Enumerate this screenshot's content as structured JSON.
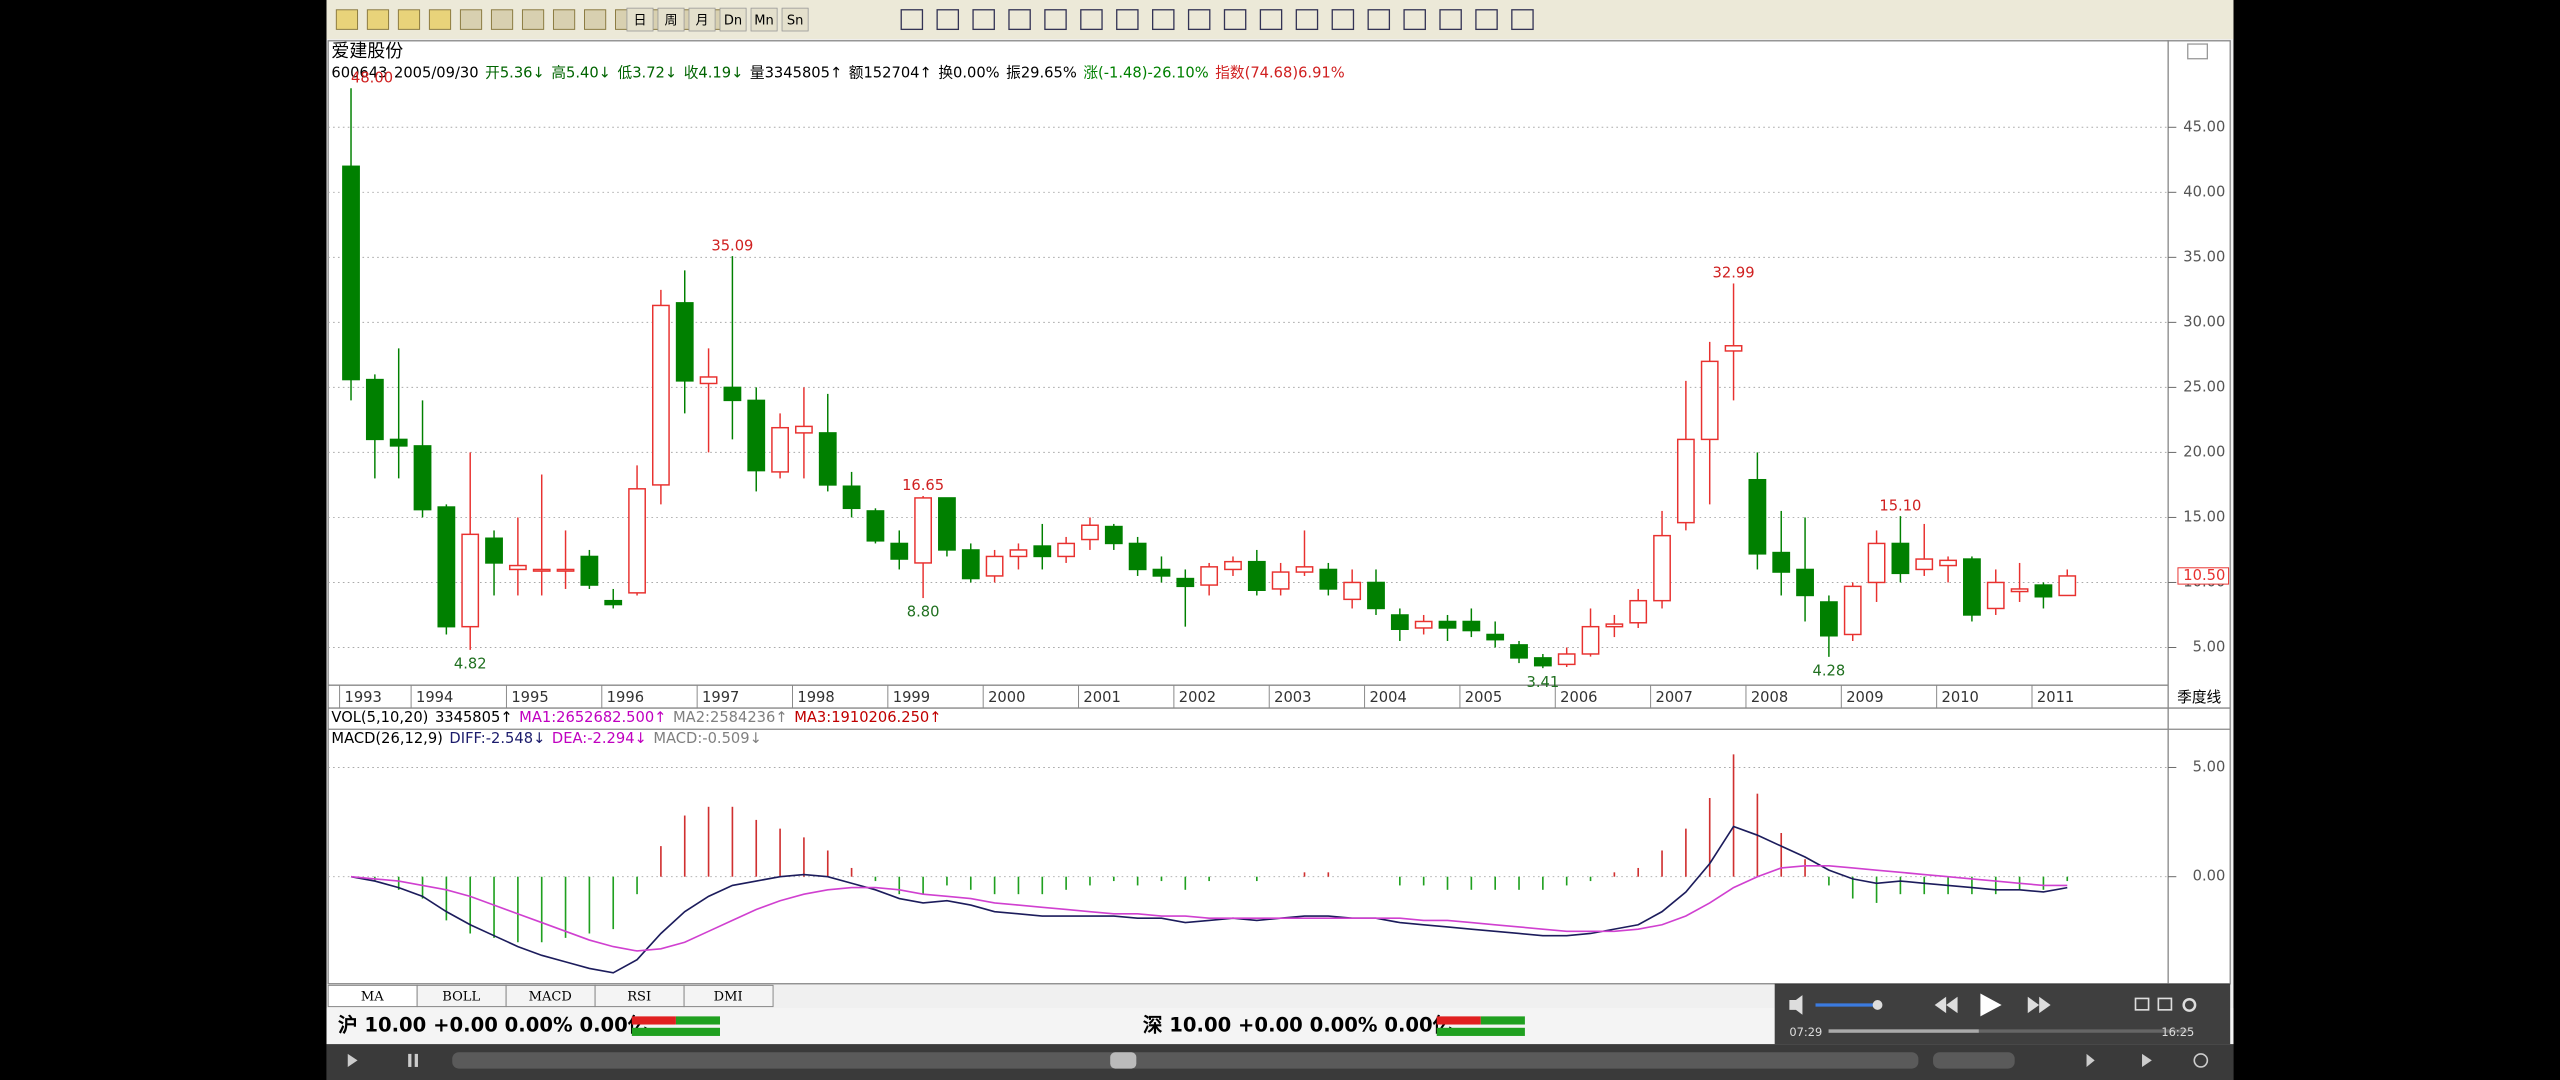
{
  "header": {
    "title": "爱建股份",
    "info": [
      {
        "text": "600643",
        "color": "#000000"
      },
      {
        "text": "2005/09/30",
        "color": "#000000"
      },
      {
        "text": "开5.36↓",
        "color": "#006400"
      },
      {
        "text": "高5.40↓",
        "color": "#006400"
      },
      {
        "text": "低3.72↓",
        "color": "#006400"
      },
      {
        "text": "收4.19↓",
        "color": "#006400"
      },
      {
        "text": "量3345805↑",
        "color": "#000000"
      },
      {
        "text": "额152704↑",
        "color": "#000000"
      },
      {
        "text": "换0.00%",
        "color": "#000000"
      },
      {
        "text": "振29.65%",
        "color": "#000000"
      },
      {
        "text": "涨(-1.48)-26.10%",
        "color": "#008000"
      },
      {
        "text": "指数(74.68)6.91%",
        "color": "#d02020"
      }
    ],
    "vol_readout": [
      {
        "text": "VOL(5,10,20)",
        "color": "#000000"
      },
      {
        "text": "3345805↑",
        "color": "#000000"
      },
      {
        "text": "MA1:2652682.500↑",
        "color": "#c000c0"
      },
      {
        "text": "MA2:2584236↑",
        "color": "#808080"
      },
      {
        "text": "MA3:1910206.250↑",
        "color": "#c00000"
      }
    ]
  },
  "toolbar": {
    "labels": [
      "日",
      "周",
      "月",
      "Dn",
      "Mn",
      "Sn"
    ]
  },
  "chart_data": [
    {
      "type": "candlestick",
      "period_label": "季度线",
      "categories": [
        "1993",
        null,
        null,
        "1994",
        null,
        null,
        null,
        "1995",
        null,
        null,
        null,
        "1996",
        null,
        null,
        null,
        "1997",
        null,
        null,
        null,
        "1998",
        null,
        null,
        null,
        "1999",
        null,
        null,
        null,
        "2000",
        null,
        null,
        null,
        "2001",
        null,
        null,
        null,
        "2002",
        null,
        null,
        null,
        "2003",
        null,
        null,
        null,
        "2004",
        null,
        null,
        null,
        "2005",
        null,
        null,
        null,
        "2006",
        null,
        null,
        null,
        "2007",
        null,
        null,
        null,
        "2008",
        null,
        null,
        null,
        "2009",
        null,
        null,
        null,
        "2010",
        null,
        null,
        null,
        "2011",
        null
      ],
      "open": [
        42,
        25.6,
        21,
        20.5,
        15.8,
        6.6,
        13.4,
        11,
        11,
        11,
        12,
        8.6,
        9.2,
        17.5,
        31.5,
        25.3,
        25,
        24,
        18.5,
        21.5,
        21.5,
        17.4,
        15.5,
        13,
        11.5,
        16.5,
        12.5,
        10.5,
        12,
        12.8,
        12,
        13.3,
        14.3,
        13,
        11,
        10.3,
        9.8,
        11,
        11.6,
        9.5,
        10.8,
        11,
        8.7,
        10,
        7.5,
        6.5,
        7,
        7,
        6,
        5.2,
        4.2,
        3.7,
        4.5,
        6.6,
        6.9,
        8.6,
        14.6,
        21,
        27.8,
        17.9,
        12.3,
        11,
        8.5,
        6,
        10,
        13,
        11,
        11.3,
        11.8,
        8,
        9.3,
        9.8,
        9
      ],
      "high": [
        48,
        26,
        28,
        24,
        16,
        20,
        14,
        15,
        18.3,
        14,
        12.5,
        9.5,
        19,
        32.5,
        34,
        28,
        35.09,
        25,
        23,
        25,
        24.5,
        18.5,
        15.7,
        14,
        16.65,
        16.5,
        13,
        12.5,
        13,
        14.5,
        13.5,
        15,
        14.5,
        13.5,
        12,
        11,
        11.5,
        12,
        12.5,
        11.5,
        14,
        11.5,
        11,
        11,
        8,
        7.5,
        7.5,
        8,
        7,
        5.5,
        4.5,
        5,
        8,
        7.5,
        9.5,
        15.5,
        25.5,
        28.5,
        32.99,
        20,
        15.5,
        15,
        9,
        10,
        14,
        15.1,
        14.5,
        12,
        12,
        11,
        11.5,
        10,
        11
      ],
      "low": [
        24,
        18,
        18,
        15,
        6,
        4.82,
        9,
        9,
        9,
        9.5,
        9.5,
        8,
        9,
        16,
        23,
        20,
        21,
        17,
        18,
        18,
        17,
        15,
        13,
        11,
        8.8,
        12,
        10,
        10,
        11,
        11,
        11.5,
        12.5,
        12.5,
        10.5,
        10,
        6.6,
        9,
        10.5,
        9,
        9,
        10.5,
        9,
        8,
        7.5,
        5.5,
        6,
        5.5,
        5.8,
        5,
        3.8,
        3.41,
        3.5,
        4.3,
        5.8,
        6.5,
        8,
        14,
        16,
        24,
        11,
        9,
        7,
        4.28,
        5.5,
        8.5,
        10,
        10.5,
        10,
        7,
        7.5,
        8.5,
        8,
        9
      ],
      "close": [
        25.6,
        21,
        20.5,
        15.6,
        6.6,
        13.7,
        11.5,
        11.3,
        11,
        11,
        9.8,
        8.3,
        17.2,
        31.3,
        25.5,
        25.8,
        24,
        18.6,
        21.9,
        22,
        17.5,
        15.7,
        13.2,
        11.8,
        16.5,
        12.5,
        10.3,
        12,
        12.5,
        12,
        13,
        14.4,
        13,
        11,
        10.5,
        9.7,
        11.2,
        11.6,
        9.4,
        10.8,
        11.2,
        9.5,
        10,
        8,
        6.4,
        7,
        6.5,
        6.3,
        5.6,
        4.2,
        3.6,
        4.5,
        6.6,
        6.8,
        8.6,
        13.6,
        21,
        27,
        28.2,
        12.2,
        10.8,
        9,
        5.9,
        9.7,
        13,
        10.7,
        11.8,
        11.7,
        7.5,
        10,
        9.5,
        8.9,
        10.5
      ],
      "high_labels": [
        "48.00",
        null,
        null,
        null,
        null,
        null,
        null,
        null,
        null,
        null,
        null,
        null,
        null,
        null,
        null,
        null,
        "35.09",
        null,
        null,
        null,
        null,
        null,
        null,
        null,
        "16.65",
        null,
        null,
        null,
        null,
        null,
        null,
        null,
        null,
        null,
        null,
        null,
        null,
        null,
        null,
        null,
        null,
        null,
        null,
        null,
        null,
        null,
        null,
        null,
        null,
        null,
        null,
        null,
        null,
        null,
        null,
        null,
        null,
        null,
        "32.99",
        null,
        null,
        null,
        null,
        null,
        null,
        "15.10",
        null,
        null,
        null,
        null,
        null,
        null,
        null
      ],
      "low_labels": [
        null,
        null,
        null,
        null,
        null,
        "4.82",
        null,
        null,
        null,
        null,
        null,
        null,
        null,
        null,
        null,
        null,
        null,
        null,
        null,
        null,
        null,
        null,
        null,
        null,
        "8.80",
        null,
        null,
        null,
        null,
        null,
        null,
        null,
        null,
        null,
        null,
        null,
        null,
        null,
        null,
        null,
        null,
        null,
        null,
        null,
        null,
        null,
        null,
        null,
        null,
        null,
        "3.41",
        null,
        null,
        null,
        null,
        null,
        null,
        null,
        null,
        null,
        null,
        null,
        "4.28",
        null,
        null,
        null,
        null,
        null,
        null,
        null,
        null,
        null,
        null
      ],
      "last_label": "10.50",
      "up_color": "#e8312f",
      "down_color": "#008000",
      "label_up_color": "#d02020",
      "label_down_color": "#207020",
      "ylim": [
        2.1,
        51.4
      ],
      "yticks": [
        {
          "value": 5,
          "label": "5.00"
        },
        {
          "value": 10,
          "label": "10.00"
        },
        {
          "value": 15,
          "label": "15.00"
        },
        {
          "value": 20,
          "label": "20.00"
        },
        {
          "value": 25,
          "label": "25.00"
        },
        {
          "value": 30,
          "label": "30.00"
        },
        {
          "value": 35,
          "label": "35.00"
        },
        {
          "value": 40,
          "label": "40.00"
        },
        {
          "value": 45,
          "label": "45.00"
        }
      ],
      "grid": true
    },
    {
      "type": "macd",
      "readout": [
        {
          "text": "MACD(26,12,9)",
          "color": "#000000"
        },
        {
          "text": "DIFF:-2.548↓",
          "color": "#1c1c6c"
        },
        {
          "text": "DEA:-2.294↓",
          "color": "#c000c0"
        },
        {
          "text": "MACD:-0.509↓",
          "color": "#808080"
        }
      ],
      "series": [
        {
          "color": "#1c1c5c",
          "values": [
            0,
            -0.2,
            -0.5,
            -0.9,
            -1.6,
            -2.2,
            -2.7,
            -3.2,
            -3.6,
            -3.9,
            -4.2,
            -4.4,
            -3.8,
            -2.6,
            -1.6,
            -0.9,
            -0.4,
            -0.2,
            0,
            0.1,
            0,
            -0.3,
            -0.6,
            -1.0,
            -1.2,
            -1.1,
            -1.3,
            -1.6,
            -1.7,
            -1.8,
            -1.8,
            -1.8,
            -1.8,
            -1.9,
            -1.9,
            -2.1,
            -2.0,
            -1.9,
            -2.0,
            -1.9,
            -1.8,
            -1.8,
            -1.9,
            -1.9,
            -2.1,
            -2.2,
            -2.3,
            -2.4,
            -2.5,
            -2.6,
            -2.7,
            -2.7,
            -2.6,
            -2.4,
            -2.2,
            -1.6,
            -0.7,
            0.6,
            2.3,
            1.9,
            1.4,
            0.9,
            0.3,
            -0.1,
            -0.3,
            -0.2,
            -0.3,
            -0.4,
            -0.5,
            -0.6,
            -0.6,
            -0.7,
            -0.5
          ]
        },
        {
          "color": "#d040d0",
          "values": [
            0,
            -0.1,
            -0.2,
            -0.4,
            -0.6,
            -0.9,
            -1.3,
            -1.7,
            -2.1,
            -2.5,
            -2.9,
            -3.2,
            -3.4,
            -3.3,
            -3.0,
            -2.5,
            -2.0,
            -1.5,
            -1.1,
            -0.8,
            -0.6,
            -0.5,
            -0.5,
            -0.6,
            -0.8,
            -0.9,
            -1.0,
            -1.2,
            -1.3,
            -1.4,
            -1.5,
            -1.6,
            -1.7,
            -1.7,
            -1.8,
            -1.8,
            -1.9,
            -1.9,
            -1.9,
            -1.9,
            -1.9,
            -1.9,
            -1.9,
            -1.9,
            -1.9,
            -2.0,
            -2.0,
            -2.1,
            -2.2,
            -2.3,
            -2.4,
            -2.5,
            -2.5,
            -2.5,
            -2.4,
            -2.2,
            -1.8,
            -1.2,
            -0.5,
            0.0,
            0.4,
            0.5,
            0.5,
            0.4,
            0.3,
            0.2,
            0.1,
            0.0,
            -0.1,
            -0.2,
            -0.3,
            -0.4,
            -0.4
          ]
        }
      ],
      "bars": {
        "up_color": "#d03030",
        "down_color": "#20a020",
        "values": [
          0,
          -0.2,
          -0.6,
          -1.0,
          -2.0,
          -2.6,
          -2.8,
          -3.0,
          -3.0,
          -2.8,
          -2.6,
          -2.4,
          -0.8,
          1.4,
          2.8,
          3.2,
          3.2,
          2.6,
          2.2,
          1.8,
          1.2,
          0.4,
          -0.2,
          -0.8,
          -0.8,
          -0.4,
          -0.6,
          -0.8,
          -0.8,
          -0.8,
          -0.6,
          -0.4,
          -0.2,
          -0.4,
          -0.2,
          -0.6,
          -0.2,
          0,
          -0.2,
          0,
          0.2,
          0.2,
          0,
          0,
          -0.4,
          -0.4,
          -0.6,
          -0.6,
          -0.6,
          -0.6,
          -0.6,
          -0.4,
          -0.2,
          0.2,
          0.4,
          1.2,
          2.2,
          3.6,
          5.6,
          3.8,
          2.0,
          0.8,
          -0.4,
          -1.0,
          -1.2,
          -0.8,
          -0.8,
          -0.8,
          -0.8,
          -0.8,
          -0.6,
          -0.6,
          -0.2
        ]
      },
      "ylim": [
        -4.9,
        6.6
      ],
      "yticks": [
        {
          "value": 0,
          "label": "0.00"
        },
        {
          "value": 5,
          "label": "5.00"
        }
      ],
      "grid": true
    }
  ],
  "tabs": [
    "MA",
    "BOLL",
    "MACD",
    "RSI",
    "DMI"
  ],
  "status": {
    "sh": "沪 10.00 +0.00 0.00% 0.00亿",
    "sz": "深 10.00 +0.00 0.00% 0.00亿"
  },
  "player": {
    "elapsed": "07:29",
    "total": "16:25"
  }
}
